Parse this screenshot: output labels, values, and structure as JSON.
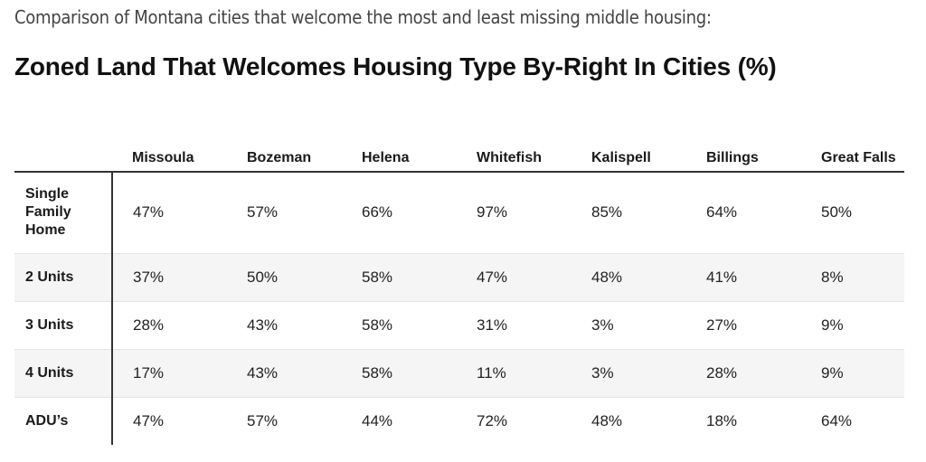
{
  "header": {
    "subtitle": "Comparison of Montana cities that welcome the most and least missing middle housing:",
    "title": "Zoned Land That Welcomes Housing Type By-Right In Cities (%)"
  },
  "chart_data": {
    "type": "table",
    "title": "Zoned Land That Welcomes Housing Type By-Right In Cities (%)",
    "subtitle": "Comparison of Montana cities that welcome the most and least missing middle housing:",
    "columns": [
      "Missoula",
      "Bozeman",
      "Helena",
      "Whitefish",
      "Kalispell",
      "Billings",
      "Great Falls"
    ],
    "rows": [
      {
        "label": "Single Family Home",
        "values": [
          "47%",
          "57%",
          "66%",
          "97%",
          "85%",
          "64%",
          "50%"
        ]
      },
      {
        "label": "2 Units",
        "values": [
          "37%",
          "50%",
          "58%",
          "47%",
          "48%",
          "41%",
          "8%"
        ]
      },
      {
        "label": "3 Units",
        "values": [
          "28%",
          "43%",
          "58%",
          "31%",
          "3%",
          "27%",
          "9%"
        ]
      },
      {
        "label": "4 Units",
        "values": [
          "17%",
          "43%",
          "58%",
          "11%",
          "3%",
          "28%",
          "9%"
        ]
      },
      {
        "label": "ADU’s",
        "values": [
          "47%",
          "57%",
          "44%",
          "72%",
          "48%",
          "18%",
          "64%"
        ]
      }
    ]
  },
  "colors": {
    "text": "#1a1a1a",
    "rule": "#333333",
    "stripe": "#f5f5f5"
  }
}
